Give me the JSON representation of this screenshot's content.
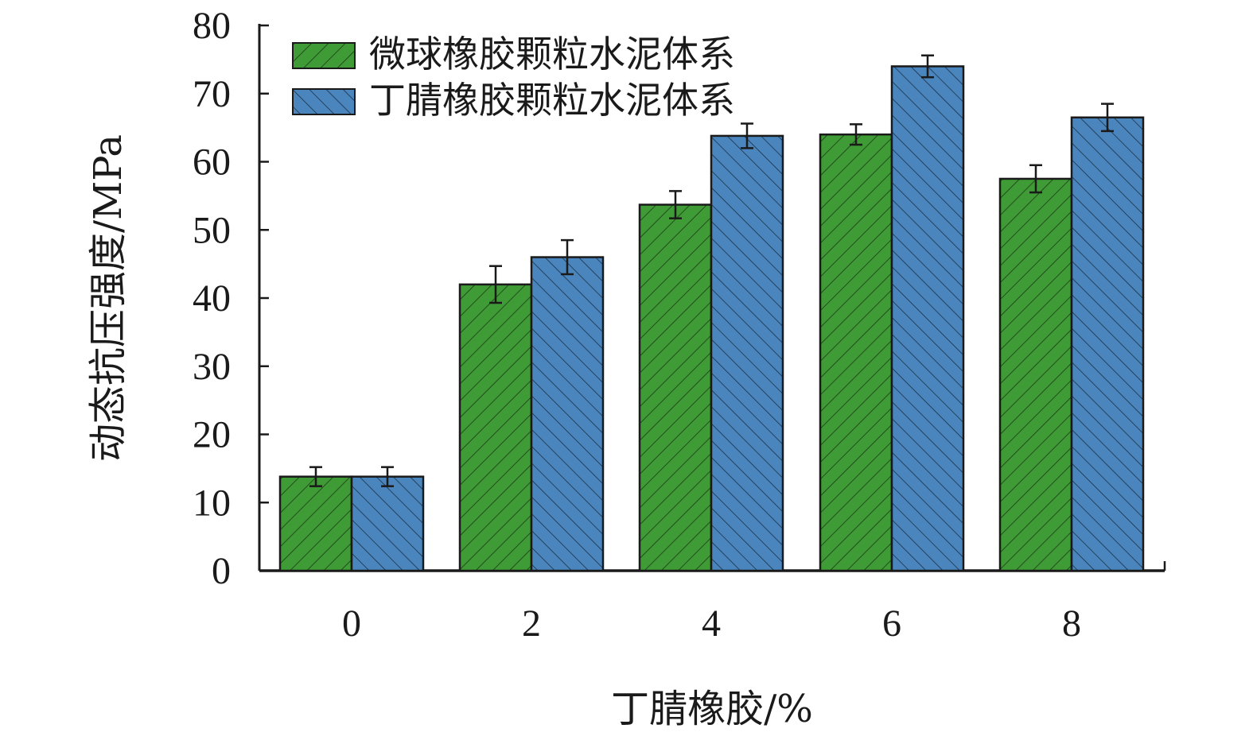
{
  "chart_data": {
    "type": "bar",
    "title": "",
    "xlabel": "丁腈橡胶/%",
    "ylabel": "动态抗压强度/MPa",
    "categories": [
      "0",
      "2",
      "4",
      "6",
      "8"
    ],
    "ylim": [
      0,
      80
    ],
    "yticks": [
      "0",
      "10",
      "20",
      "30",
      "40",
      "50",
      "60",
      "70",
      "80"
    ],
    "ytick_values": [
      0,
      10,
      20,
      30,
      40,
      50,
      60,
      70,
      80
    ],
    "grid": false,
    "legend_position": "top-left",
    "series": [
      {
        "name": "微球橡胶颗粒水泥体系",
        "color": "#3f9b35",
        "pattern": "hatch-forward",
        "values": [
          13.8,
          42.0,
          53.7,
          64.0,
          57.5
        ],
        "errors": [
          1.4,
          2.7,
          2.0,
          1.5,
          2.0
        ]
      },
      {
        "name": "丁腈橡胶颗粒水泥体系",
        "color": "#4a86bd",
        "pattern": "hatch-back",
        "values": [
          13.8,
          46.0,
          63.8,
          74.0,
          66.5
        ],
        "errors": [
          1.4,
          2.5,
          1.8,
          1.6,
          2.0
        ]
      }
    ]
  }
}
